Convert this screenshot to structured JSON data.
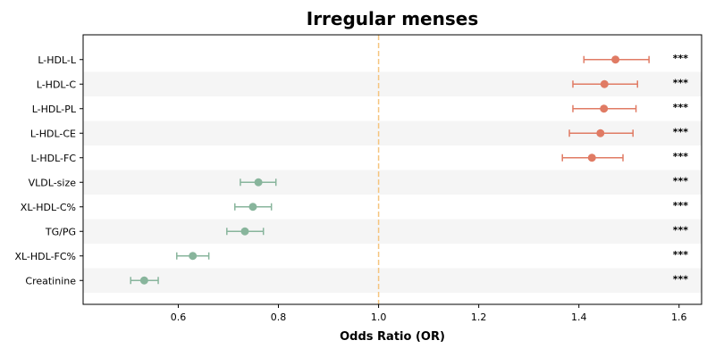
{
  "chart_data": {
    "type": "forest",
    "title": "Irregular menses",
    "xlabel": "Odds Ratio (OR)",
    "ylabel": "",
    "xlim": [
      0.41,
      1.645
    ],
    "xticks": [
      0.6,
      0.8,
      1.0,
      1.2,
      1.4,
      1.6
    ],
    "xtick_labels": [
      "0.6",
      "0.8",
      "1.0",
      "1.2",
      "1.4",
      "1.6"
    ],
    "reference_line": 1.0,
    "grid": false,
    "row_shading": "alternating",
    "colors": {
      "increased": "#e07b64",
      "decreased": "#88b59c",
      "reference_line": "#f5c57f",
      "row_shade": "#f5f5f5"
    },
    "rows": [
      {
        "label": "L-HDL-L",
        "or": 1.473,
        "ci_low": 1.41,
        "ci_high": 1.54,
        "sig": "***"
      },
      {
        "label": "L-HDL-C",
        "or": 1.451,
        "ci_low": 1.388,
        "ci_high": 1.517,
        "sig": "***"
      },
      {
        "label": "L-HDL-PL",
        "or": 1.45,
        "ci_low": 1.388,
        "ci_high": 1.514,
        "sig": "***"
      },
      {
        "label": "L-HDL-CE",
        "or": 1.443,
        "ci_low": 1.381,
        "ci_high": 1.508,
        "sig": "***"
      },
      {
        "label": "L-HDL-FC",
        "or": 1.426,
        "ci_low": 1.367,
        "ci_high": 1.488,
        "sig": "***"
      },
      {
        "label": "VLDL-size",
        "or": 0.76,
        "ci_low": 0.724,
        "ci_high": 0.795,
        "sig": "***"
      },
      {
        "label": "XL-HDL-C%",
        "or": 0.749,
        "ci_low": 0.713,
        "ci_high": 0.786,
        "sig": "***"
      },
      {
        "label": "TG/PG",
        "or": 0.733,
        "ci_low": 0.697,
        "ci_high": 0.77,
        "sig": "***"
      },
      {
        "label": "XL-HDL-FC%",
        "or": 0.629,
        "ci_low": 0.597,
        "ci_high": 0.661,
        "sig": "***"
      },
      {
        "label": "Creatinine",
        "or": 0.532,
        "ci_low": 0.505,
        "ci_high": 0.56,
        "sig": "***"
      }
    ]
  }
}
